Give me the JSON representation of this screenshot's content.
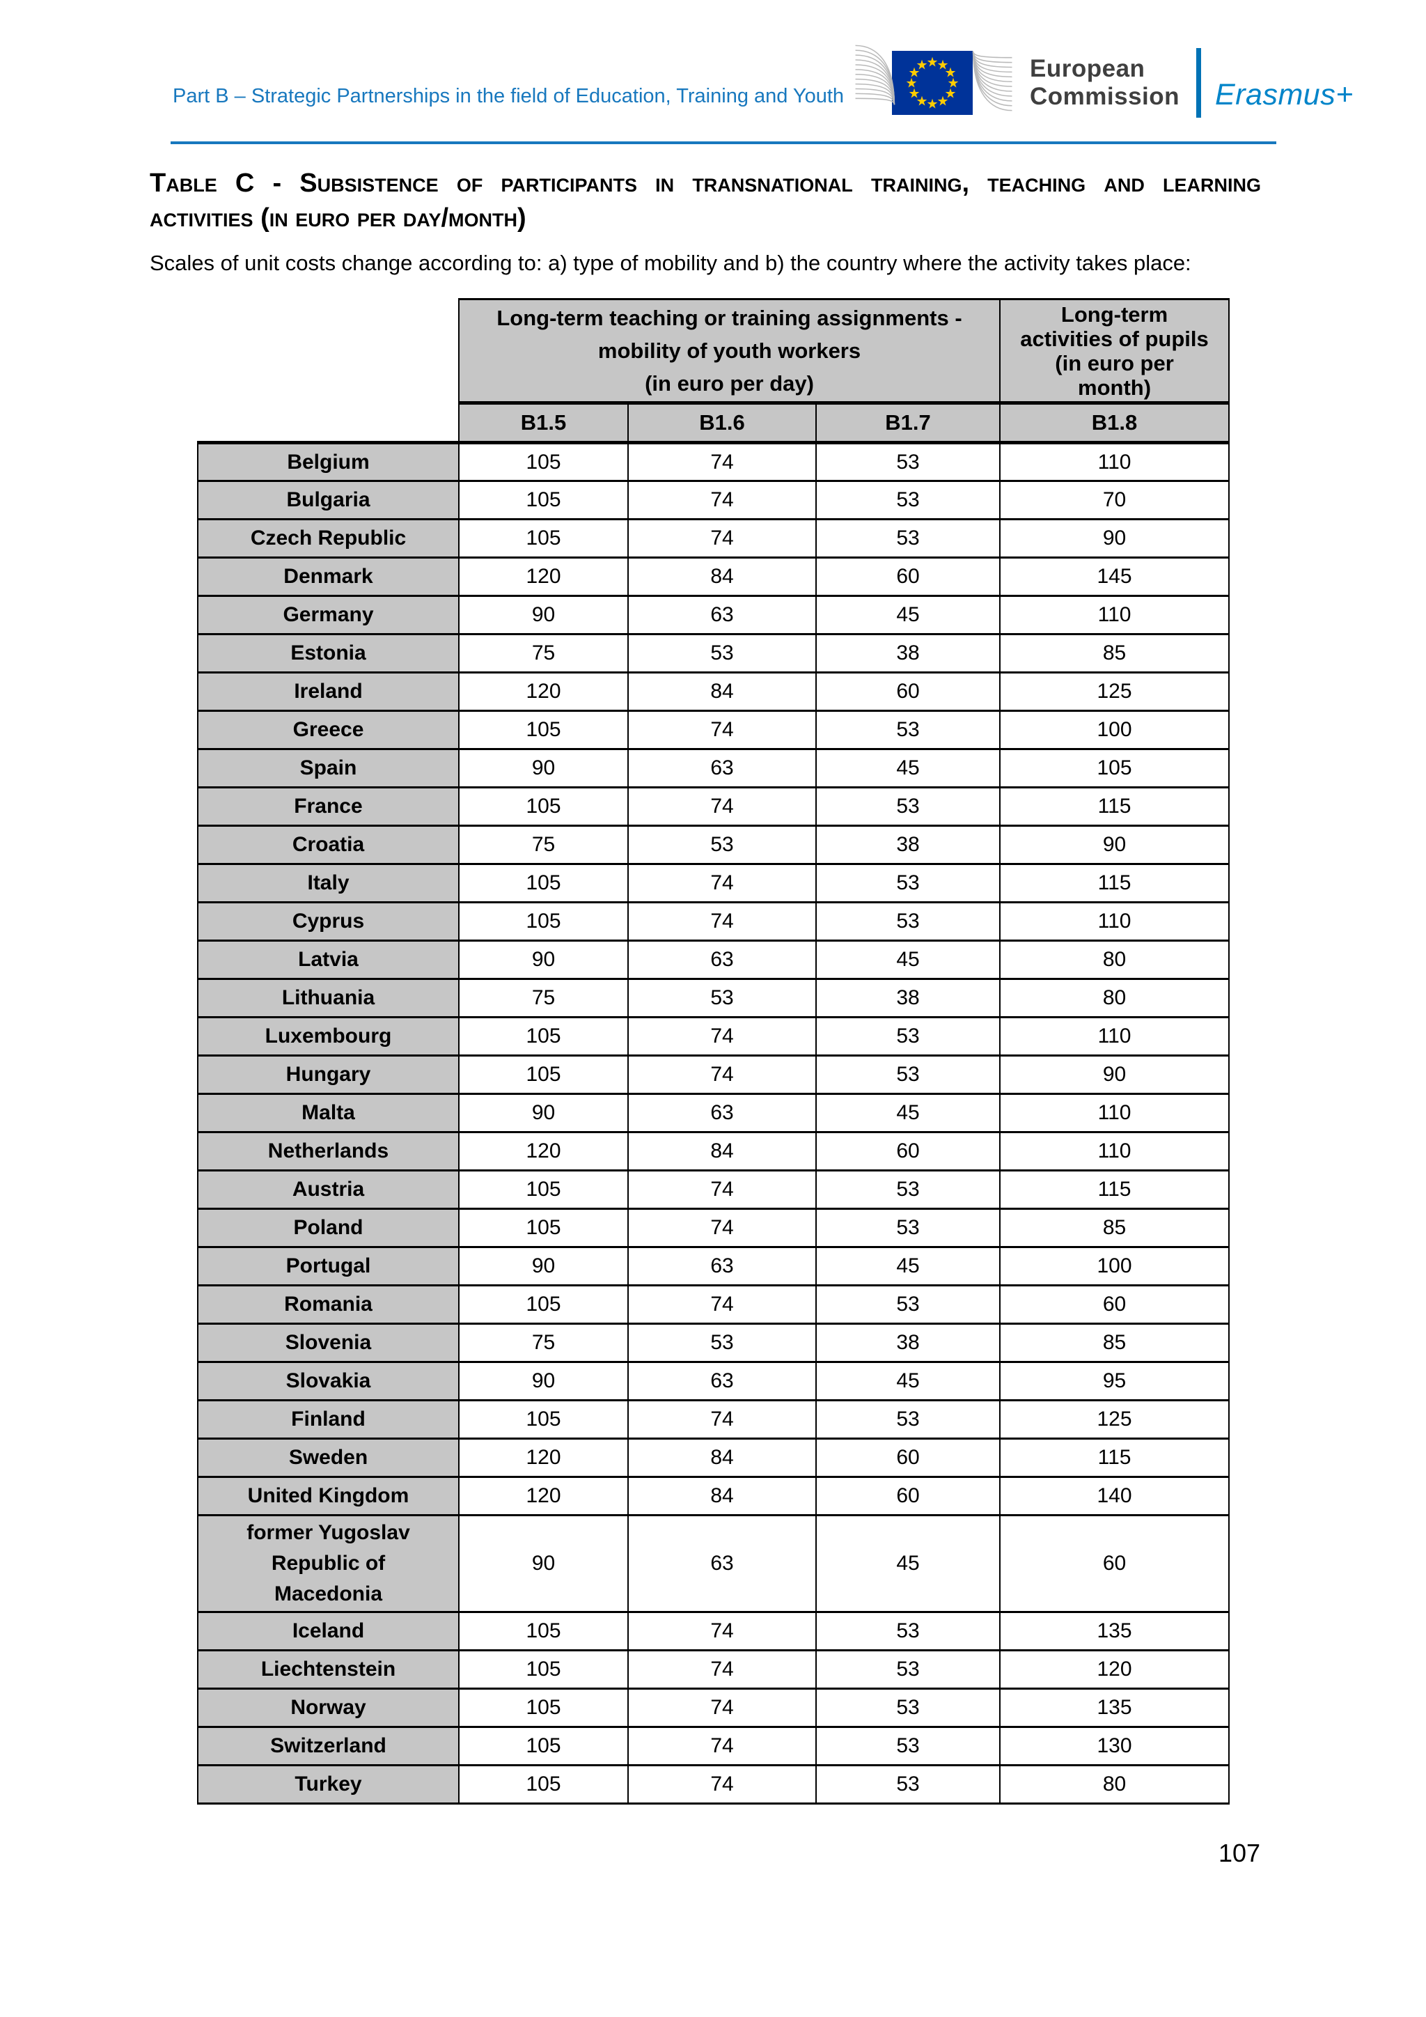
{
  "header": {
    "breadcrumb": "Part B – Strategic Partnerships in the field of Education, Training and Youth",
    "logo": {
      "institution_line1": "European",
      "institution_line2": "Commission",
      "programme": "Erasmus+",
      "flag_star_glyph": "★"
    }
  },
  "document": {
    "title_line1": "Table C - Subsistence of participants in transnational training, teaching and learning",
    "title_line2": "activities (in euro per day/month)",
    "intro": "Scales of unit costs change according to: a) type of mobility and b) the country where the activity takes place:",
    "page_number": "107"
  },
  "table": {
    "group_columns": [
      {
        "label": "Long-term teaching or training assignments -\nmobility of youth workers\n(in euro per day)",
        "span": 3
      },
      {
        "label": "Long-term\nactivities of pupils\n(in euro per\nmonth)",
        "span": 1
      }
    ],
    "sub_columns": [
      "B1.5",
      "B1.6",
      "B1.7",
      "B1.8"
    ],
    "rows": [
      [
        "Belgium",
        105,
        74,
        53,
        110
      ],
      [
        "Bulgaria",
        105,
        74,
        53,
        70
      ],
      [
        "Czech Republic",
        105,
        74,
        53,
        90
      ],
      [
        "Denmark",
        120,
        84,
        60,
        145
      ],
      [
        "Germany",
        90,
        63,
        45,
        110
      ],
      [
        "Estonia",
        75,
        53,
        38,
        85
      ],
      [
        "Ireland",
        120,
        84,
        60,
        125
      ],
      [
        "Greece",
        105,
        74,
        53,
        100
      ],
      [
        "Spain",
        90,
        63,
        45,
        105
      ],
      [
        "France",
        105,
        74,
        53,
        115
      ],
      [
        "Croatia",
        75,
        53,
        38,
        90
      ],
      [
        "Italy",
        105,
        74,
        53,
        115
      ],
      [
        "Cyprus",
        105,
        74,
        53,
        110
      ],
      [
        "Latvia",
        90,
        63,
        45,
        80
      ],
      [
        "Lithuania",
        75,
        53,
        38,
        80
      ],
      [
        "Luxembourg",
        105,
        74,
        53,
        110
      ],
      [
        "Hungary",
        105,
        74,
        53,
        90
      ],
      [
        "Malta",
        90,
        63,
        45,
        110
      ],
      [
        "Netherlands",
        120,
        84,
        60,
        110
      ],
      [
        "Austria",
        105,
        74,
        53,
        115
      ],
      [
        "Poland",
        105,
        74,
        53,
        85
      ],
      [
        "Portugal",
        90,
        63,
        45,
        100
      ],
      [
        "Romania",
        105,
        74,
        53,
        60
      ],
      [
        "Slovenia",
        75,
        53,
        38,
        85
      ],
      [
        "Slovakia",
        90,
        63,
        45,
        95
      ],
      [
        "Finland",
        105,
        74,
        53,
        125
      ],
      [
        "Sweden",
        120,
        84,
        60,
        115
      ],
      [
        "United Kingdom",
        120,
        84,
        60,
        140
      ],
      [
        "former Yugoslav\nRepublic of\nMacedonia",
        90,
        63,
        45,
        60
      ],
      [
        "Iceland",
        105,
        74,
        53,
        135
      ],
      [
        "Liechtenstein",
        105,
        74,
        53,
        120
      ],
      [
        "Norway",
        105,
        74,
        53,
        135
      ],
      [
        "Switzerland",
        105,
        74,
        53,
        130
      ],
      [
        "Turkey",
        105,
        74,
        53,
        80
      ]
    ]
  },
  "colors": {
    "accent-blue": "#1878be",
    "table-header-gray": "#c6c6c6",
    "eu-flag-blue": "#003399",
    "star-yellow": "#ffcc00",
    "bar-blue": "#0072b5",
    "erasmus-blue": "#0084c9",
    "swoosh-gray": "#b9b9b9"
  }
}
